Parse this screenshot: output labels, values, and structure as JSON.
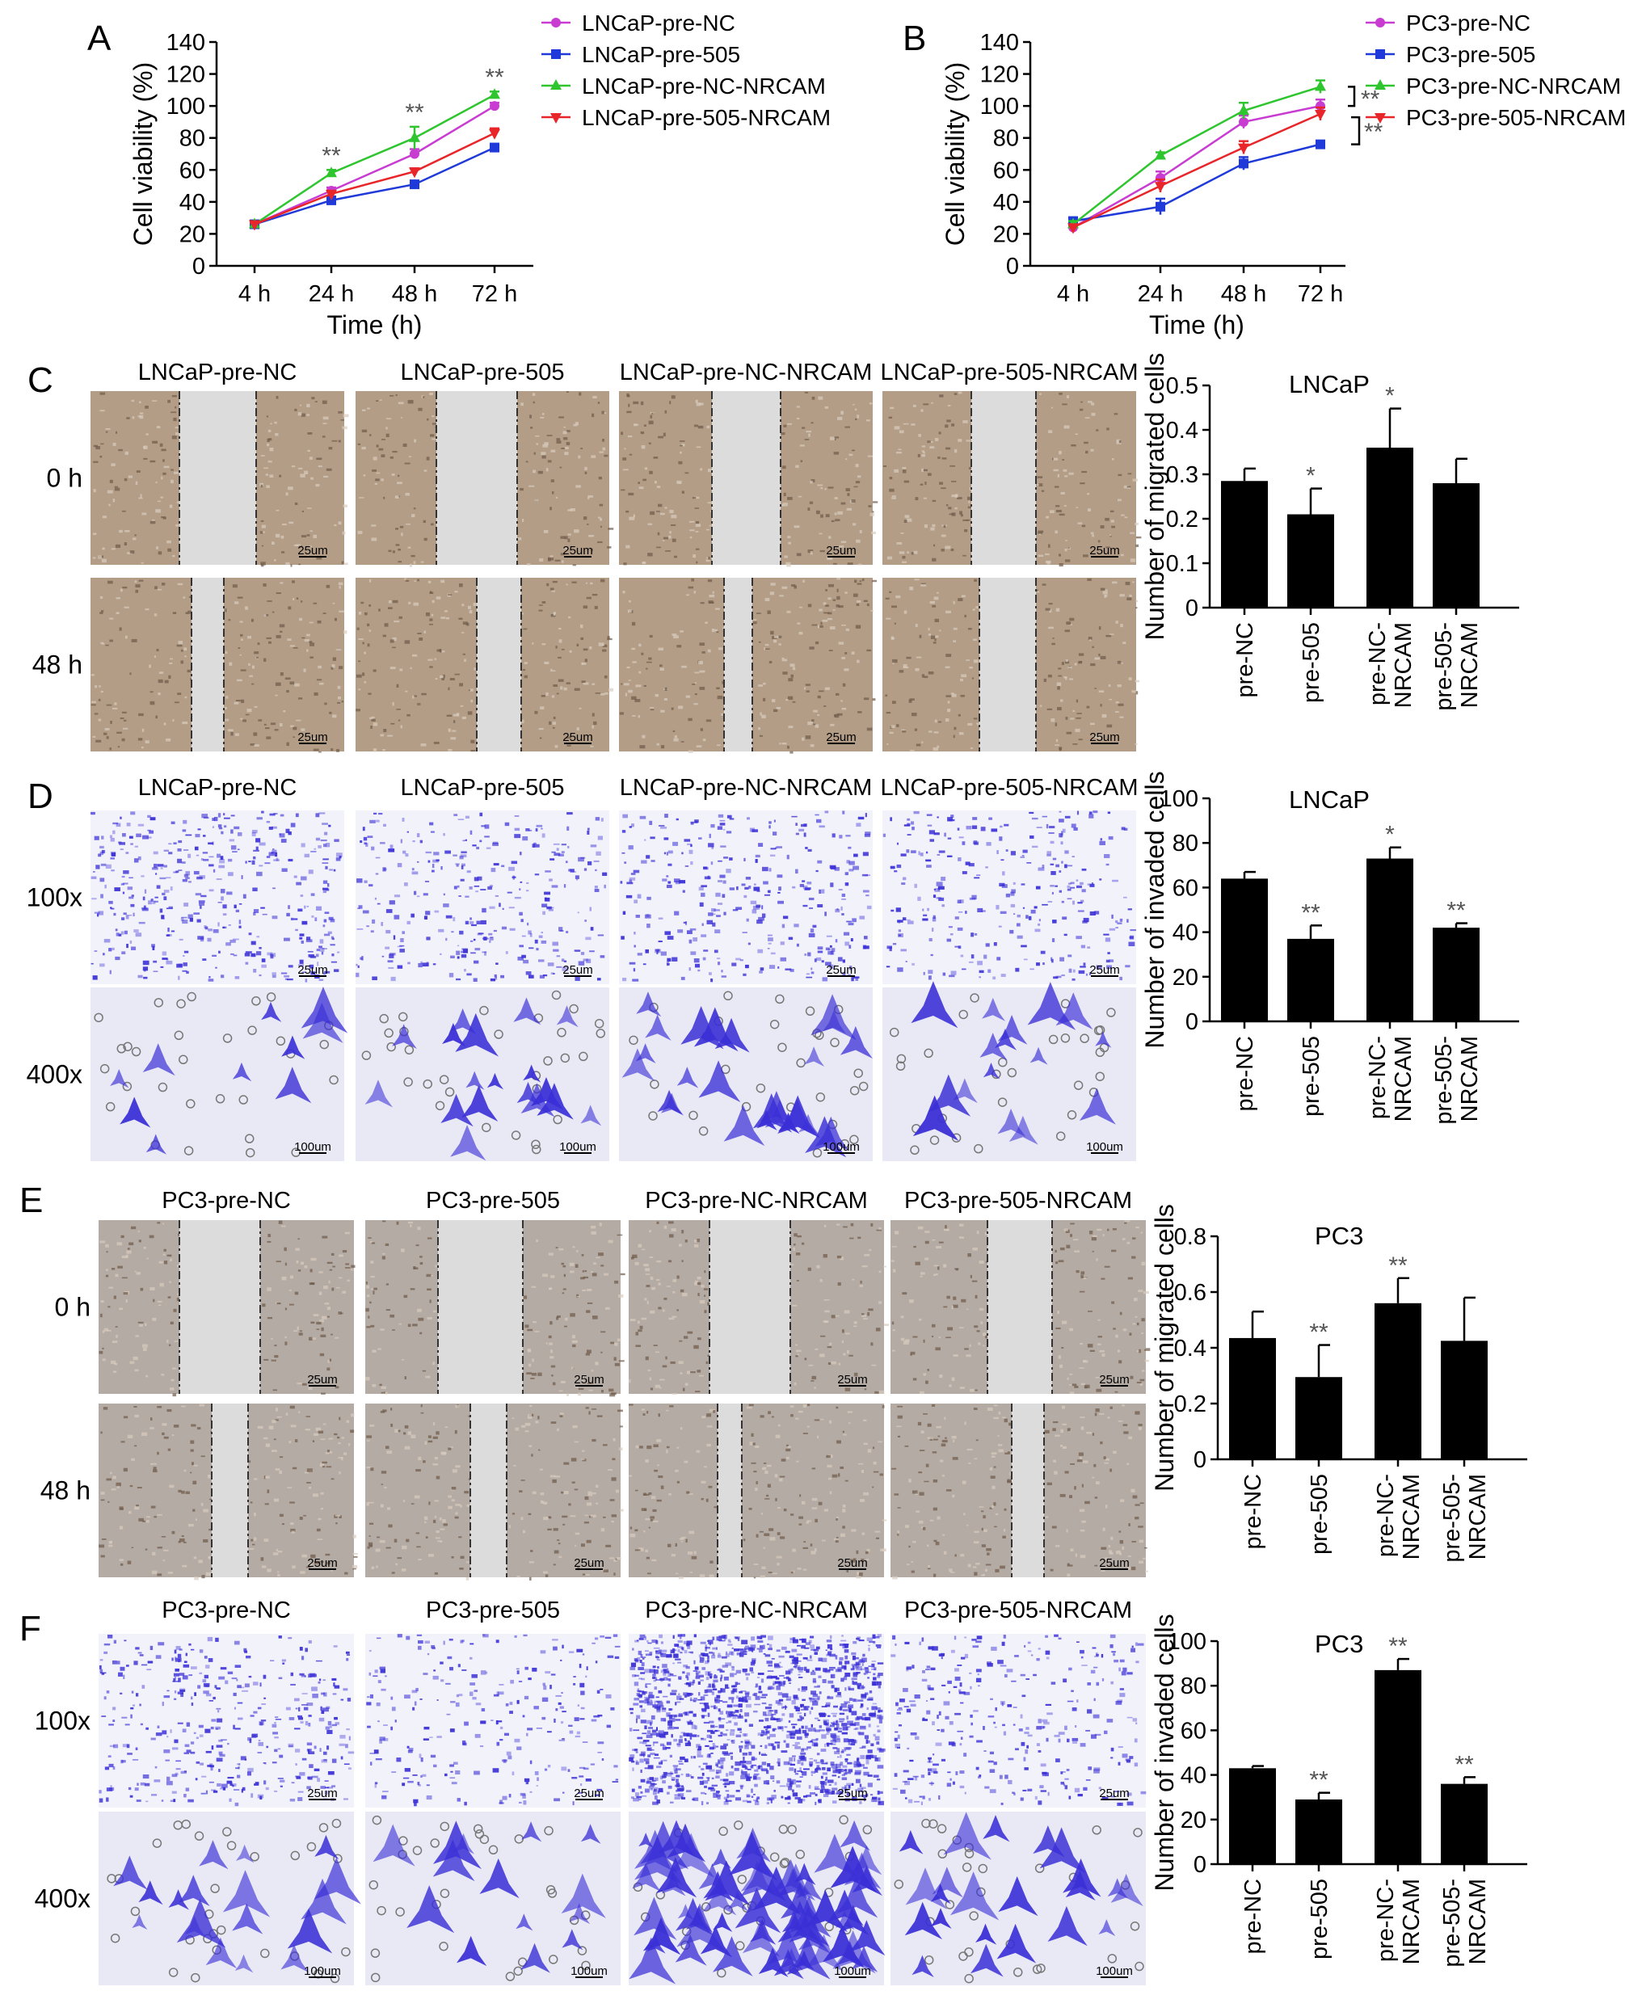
{
  "panels": {
    "A": {
      "letter": "A"
    },
    "B": {
      "letter": "B"
    },
    "C": {
      "letter": "C",
      "columns": [
        "LNCaP-pre-NC",
        "LNCaP-pre-505",
        "LNCaP-pre-NC-NRCAM",
        "LNCaP-pre-505-NRCAM"
      ],
      "rows": [
        "0 h",
        "48 h"
      ],
      "scale": "25um"
    },
    "D": {
      "letter": "D",
      "columns": [
        "LNCaP-pre-NC",
        "LNCaP-pre-505",
        "LNCaP-pre-NC-NRCAM",
        "LNCaP-pre-505-NRCAM"
      ],
      "rows": [
        "100x",
        "400x"
      ],
      "scale_top": "25um",
      "scale_bottom": "100um"
    },
    "E": {
      "letter": "E",
      "columns": [
        "PC3-pre-NC",
        "PC3-pre-505",
        "PC3-pre-NC-NRCAM",
        "PC3-pre-505-NRCAM"
      ],
      "rows": [
        "0 h",
        "48 h"
      ],
      "scale": "25um"
    },
    "F": {
      "letter": "F",
      "columns": [
        "PC3-pre-NC",
        "PC3-pre-505",
        "PC3-pre-NC-NRCAM",
        "PC3-pre-505-NRCAM"
      ],
      "rows": [
        "100x",
        "400x"
      ],
      "scale_top": "25um",
      "scale_bottom": "100um"
    }
  },
  "colors": {
    "magenta": "#c83cd2",
    "blue": "#1f3ad8",
    "green": "#2ec52e",
    "red": "#e8262a",
    "bar": "#000000",
    "stain": "#3a2fd6",
    "stain_bg_top": "#f2f2fb",
    "stain_bg_bottom": "#e9e9f6",
    "wound_bg": "#b39d86",
    "wound_gap": "#dcdcdc",
    "wound_bg_pc3": "#b4aba4"
  },
  "chart_data": [
    {
      "panel": "A",
      "type": "line",
      "xlabel": "Time (h)",
      "ylabel": "Cell viability (%)",
      "categories": [
        "4 h",
        "24 h",
        "48 h",
        "72 h"
      ],
      "ylim": [
        0,
        140
      ],
      "yticks": [
        "0",
        "20",
        "40",
        "60",
        "80",
        "100",
        "120",
        "140"
      ],
      "legend_position": "right",
      "series": [
        {
          "name": "LNCaP-pre-NC",
          "color": "#c83cd2",
          "values": [
            26,
            47,
            70,
            100
          ],
          "errors": [
            1,
            2,
            3,
            2
          ]
        },
        {
          "name": "LNCaP-pre-505",
          "color": "#1f3ad8",
          "values": [
            26,
            41,
            51,
            74
          ],
          "errors": [
            1,
            2,
            2,
            2
          ]
        },
        {
          "name": "LNCaP-pre-NC-NRCAM",
          "color": "#2ec52e",
          "values": [
            26,
            58,
            80,
            107
          ],
          "errors": [
            1,
            2,
            7,
            2
          ]
        },
        {
          "name": "LNCaP-pre-505-NRCAM",
          "color": "#e8262a",
          "values": [
            26,
            45,
            59,
            83
          ],
          "errors": [
            1,
            2,
            2,
            3
          ]
        }
      ],
      "annotations": [
        {
          "category": "24 h",
          "text": "**",
          "value": 64
        },
        {
          "category": "48 h",
          "text": "**",
          "value": 91
        },
        {
          "category": "72 h",
          "text": "**",
          "value": 113
        }
      ]
    },
    {
      "panel": "B",
      "type": "line",
      "xlabel": "Time (h)",
      "ylabel": "Cell viability (%)",
      "categories": [
        "4 h",
        "24 h",
        "48 h",
        "72 h"
      ],
      "ylim": [
        0,
        140
      ],
      "yticks": [
        "0",
        "20",
        "40",
        "60",
        "80",
        "100",
        "120",
        "140"
      ],
      "legend_position": "right",
      "series": [
        {
          "name": "PC3-pre-NC",
          "color": "#c83cd2",
          "values": [
            24,
            55,
            90,
            100
          ],
          "errors": [
            2,
            4,
            4,
            4
          ]
        },
        {
          "name": "PC3-pre-505",
          "color": "#1f3ad8",
          "values": [
            28,
            37,
            64,
            76
          ],
          "errors": [
            2,
            5,
            4,
            2
          ]
        },
        {
          "name": "PC3-pre-NC-NRCAM",
          "color": "#2ec52e",
          "values": [
            26,
            69,
            97,
            112
          ],
          "errors": [
            2,
            2,
            5,
            4
          ]
        },
        {
          "name": "PC3-pre-505-NRCAM",
          "color": "#e8262a",
          "values": [
            24,
            50,
            74,
            95
          ],
          "errors": [
            2,
            4,
            4,
            4
          ]
        }
      ],
      "annotations": [
        {
          "text": "**",
          "between": [
            "PC3-pre-NC-NRCAM",
            "PC3-pre-NC"
          ]
        },
        {
          "text": "**",
          "between": [
            "PC3-pre-NC",
            "PC3-pre-505"
          ]
        }
      ]
    },
    {
      "panel": "C",
      "type": "bar",
      "title": "LNCaP",
      "ylabel": "Number of migrated cells",
      "categories": [
        "pre-NC",
        "pre-505",
        "pre-NC-\nNRCAM",
        "pre-505-\nNRCAM"
      ],
      "ylim": [
        0,
        0.5
      ],
      "yticks": [
        "0",
        "0.1",
        "0.2",
        "0.3",
        "0.4",
        "0.5"
      ],
      "values": [
        0.285,
        0.21,
        0.36,
        0.28
      ],
      "errors": [
        0.028,
        0.058,
        0.088,
        0.055
      ],
      "significance": [
        "",
        "*",
        "*",
        ""
      ]
    },
    {
      "panel": "D",
      "type": "bar",
      "title": "LNCaP",
      "ylabel": "Number of invaded cells",
      "categories": [
        "pre-NC",
        "pre-505",
        "pre-NC-\nNRCAM",
        "pre-505-\nNRCAM"
      ],
      "ylim": [
        0,
        100
      ],
      "yticks": [
        "0",
        "20",
        "40",
        "60",
        "80",
        "100"
      ],
      "values": [
        64,
        37,
        73,
        42
      ],
      "errors": [
        3,
        6,
        5,
        2
      ],
      "significance": [
        "",
        "**",
        "*",
        "**"
      ]
    },
    {
      "panel": "E",
      "type": "bar",
      "title": "PC3",
      "ylabel": "Number of migrated cells",
      "categories": [
        "pre-NC",
        "pre-505",
        "pre-NC-\nNRCAM",
        "pre-505-\nNRCAM"
      ],
      "ylim": [
        0,
        0.8
      ],
      "yticks": [
        "0",
        "0.2",
        "0.4",
        "0.6",
        "0.8"
      ],
      "values": [
        0.435,
        0.295,
        0.56,
        0.425
      ],
      "errors": [
        0.095,
        0.115,
        0.09,
        0.155
      ],
      "significance": [
        "",
        "**",
        "**",
        ""
      ]
    },
    {
      "panel": "F",
      "type": "bar",
      "title": "PC3",
      "ylabel": "Number of invaded cells",
      "categories": [
        "pre-NC",
        "pre-505",
        "pre-NC-\nNRCAM",
        "pre-505-\nNRCAM"
      ],
      "ylim": [
        0,
        100
      ],
      "yticks": [
        "0",
        "20",
        "40",
        "60",
        "80",
        "100"
      ],
      "values": [
        43,
        29,
        87,
        36
      ],
      "errors": [
        1,
        3,
        5,
        3
      ],
      "significance": [
        "",
        "**",
        "**",
        "**"
      ]
    }
  ]
}
